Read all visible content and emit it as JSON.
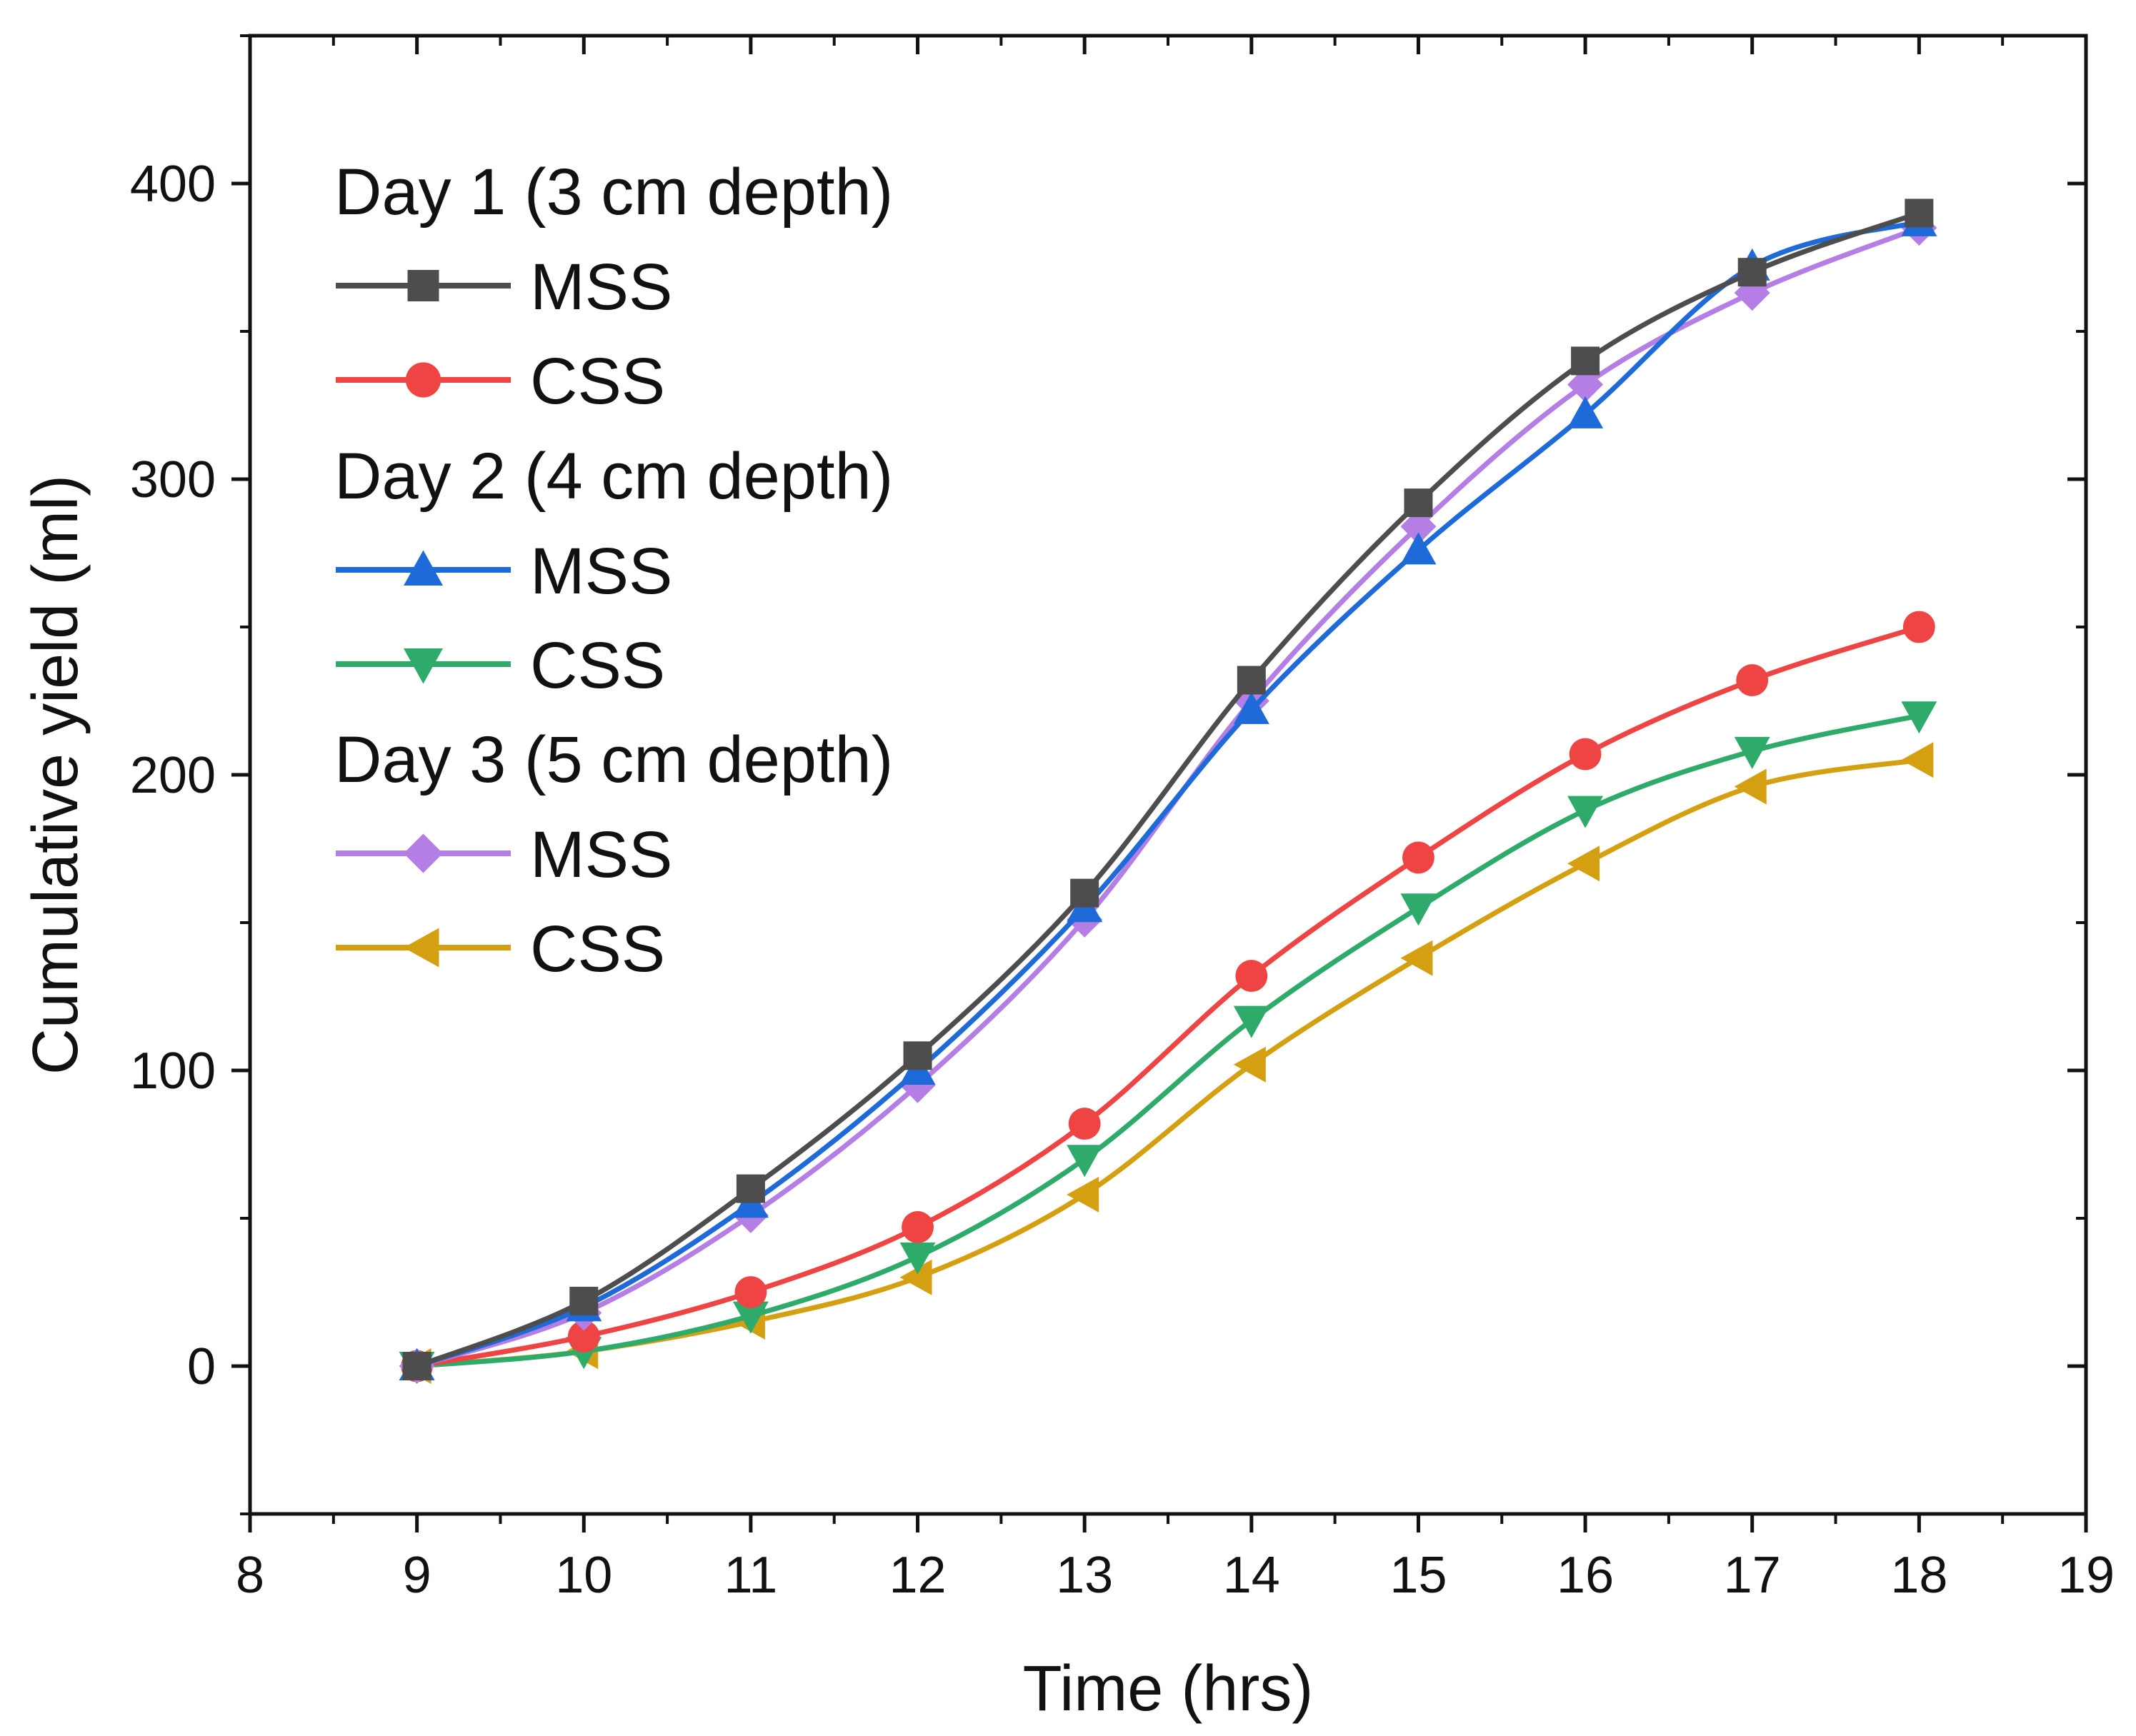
{
  "chart_data": {
    "type": "line",
    "title": "",
    "xlabel": "Time (hrs)",
    "ylabel": "Cumulative yield (ml)",
    "xlim": [
      8,
      19
    ],
    "ylim": [
      -50,
      450
    ],
    "x_ticks": [
      8,
      9,
      10,
      11,
      12,
      13,
      14,
      15,
      16,
      17,
      18,
      19
    ],
    "y_ticks": [
      0,
      100,
      200,
      300,
      400
    ],
    "x_tick_labels": [
      "8",
      "9",
      "10",
      "11",
      "12",
      "13",
      "14",
      "15",
      "16",
      "17",
      "18",
      "19"
    ],
    "y_tick_labels": [
      "0",
      "100",
      "200",
      "300",
      "400"
    ],
    "grid": false,
    "legend_position": "top-left",
    "x": [
      9,
      10,
      11,
      12,
      13,
      14,
      15,
      16,
      17,
      18
    ],
    "legend_groups": [
      {
        "title": "Day 1 (3 cm depth)",
        "series_index": [
          0,
          1
        ]
      },
      {
        "title": "Day 2 (4 cm depth)",
        "series_index": [
          2,
          3
        ]
      },
      {
        "title": "Day 3 (5 cm depth)",
        "series_index": [
          4,
          5
        ]
      }
    ],
    "series": [
      {
        "name": "MSS",
        "group": "Day 1 (3 cm depth)",
        "marker": "square",
        "color": "#4d4d4d",
        "values": [
          0,
          22,
          60,
          105,
          160,
          232,
          292,
          340,
          370,
          390
        ]
      },
      {
        "name": "CSS",
        "group": "Day 1 (3 cm depth)",
        "marker": "circle",
        "color": "#ee4444",
        "values": [
          0,
          10,
          25,
          47,
          82,
          132,
          172,
          207,
          232,
          250
        ]
      },
      {
        "name": "MSS",
        "group": "Day 2 (4 cm depth)",
        "marker": "triangle-up",
        "color": "#1e6ad8",
        "values": [
          0,
          20,
          55,
          100,
          155,
          222,
          276,
          322,
          372,
          387
        ]
      },
      {
        "name": "CSS",
        "group": "Day 2 (4 cm depth)",
        "marker": "triangle-down",
        "color": "#2eaa6a",
        "values": [
          0,
          5,
          17,
          37,
          70,
          117,
          155,
          188,
          208,
          220
        ]
      },
      {
        "name": "MSS",
        "group": "Day 3 (5 cm depth)",
        "marker": "diamond",
        "color": "#b47ee4",
        "values": [
          0,
          18,
          51,
          95,
          151,
          225,
          284,
          332,
          363,
          385
        ]
      },
      {
        "name": "CSS",
        "group": "Day 3 (5 cm depth)",
        "marker": "triangle-left",
        "color": "#d4a012",
        "values": [
          0,
          5,
          15,
          30,
          58,
          102,
          138,
          170,
          196,
          205
        ]
      }
    ]
  }
}
